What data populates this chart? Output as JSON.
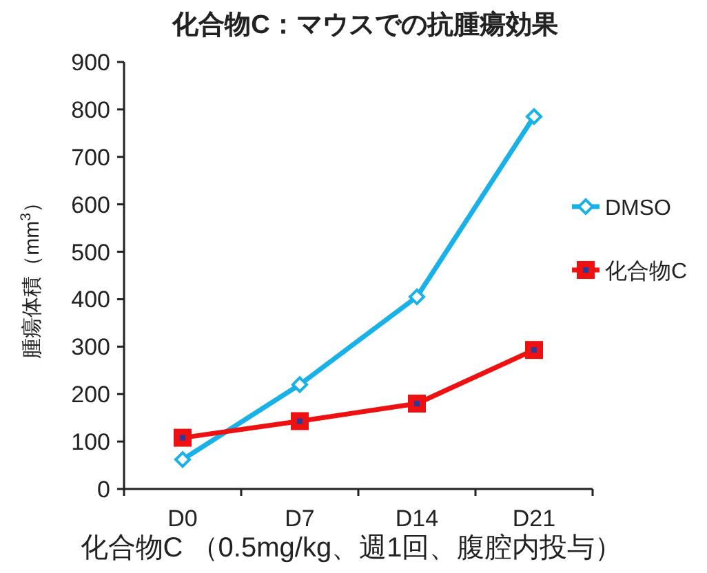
{
  "chart_data": {
    "type": "line",
    "title": "化合物C：マウスでの抗腫瘍効果",
    "xlabel": "化合物C （0.5mg/kg、週1回、腹腔内投与）",
    "ylabel": "腫瘍体積（mm$^{3}$）",
    "categories": [
      "D0",
      "D7",
      "D14",
      "D21"
    ],
    "series": [
      {
        "name": "DMSO",
        "color": "#1ab0e8",
        "marker": "diamond",
        "values": [
          62,
          220,
          405,
          785
        ]
      },
      {
        "name": "化合物C",
        "color": "#ee1111",
        "marker": "square",
        "values": [
          108,
          143,
          180,
          293
        ]
      }
    ],
    "ylim": [
      0,
      900
    ],
    "yticks": [
      0,
      100,
      200,
      300,
      400,
      500,
      600,
      700,
      800,
      900
    ],
    "grid": false,
    "legend": "right"
  }
}
